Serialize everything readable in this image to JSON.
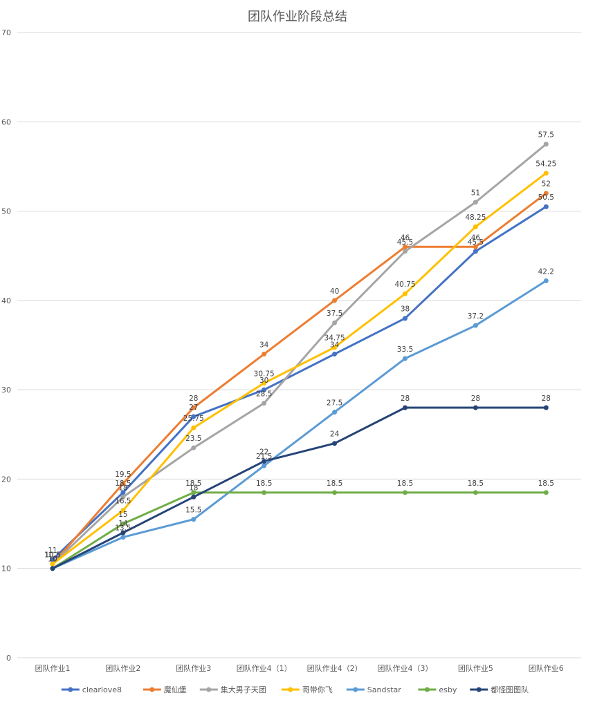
{
  "chart_data": {
    "type": "line",
    "title": "团队作业阶段总结",
    "xlabel": "",
    "ylabel": "",
    "categories": [
      "团队作业1",
      "团队作业2",
      "团队作业3",
      "团队作业4（1）",
      "团队作业4（2）",
      "团队作业4（3）",
      "团队作业5",
      "团队作业6"
    ],
    "ylim": [
      0,
      70
    ],
    "yticks": [
      0,
      10,
      20,
      30,
      40,
      50,
      60,
      70
    ],
    "grid": true,
    "legend_position": "bottom",
    "series": [
      {
        "name": "clearlove8",
        "color": "#4472C4",
        "values": [
          11,
          18.5,
          27,
          30,
          34,
          38,
          45.5,
          50.5
        ]
      },
      {
        "name": "魔仙堡",
        "color": "#ED7D31",
        "values": [
          10.5,
          19.5,
          28,
          34,
          40,
          46,
          46,
          52
        ]
      },
      {
        "name": "集大男子天团",
        "color": "#A5A5A5",
        "values": [
          10.5,
          18,
          23.5,
          28.5,
          37.5,
          45.5,
          51,
          57.5
        ]
      },
      {
        "name": "哥带你飞",
        "color": "#FFC000",
        "values": [
          10.5,
          16.5,
          25.75,
          30.75,
          34.75,
          40.75,
          48.25,
          54.25
        ]
      },
      {
        "name": "Sandstar",
        "color": "#5B9BD5",
        "values": [
          10,
          13.5,
          15.5,
          21.5,
          27.5,
          33.5,
          37.2,
          42.2
        ]
      },
      {
        "name": "esby",
        "color": "#70AD47",
        "values": [
          10,
          15,
          18.5,
          18.5,
          18.5,
          18.5,
          18.5,
          18.5
        ]
      },
      {
        "name": "都怪图图队",
        "color": "#264478",
        "values": [
          10,
          14,
          18,
          22,
          24,
          28,
          28,
          28
        ]
      }
    ]
  }
}
